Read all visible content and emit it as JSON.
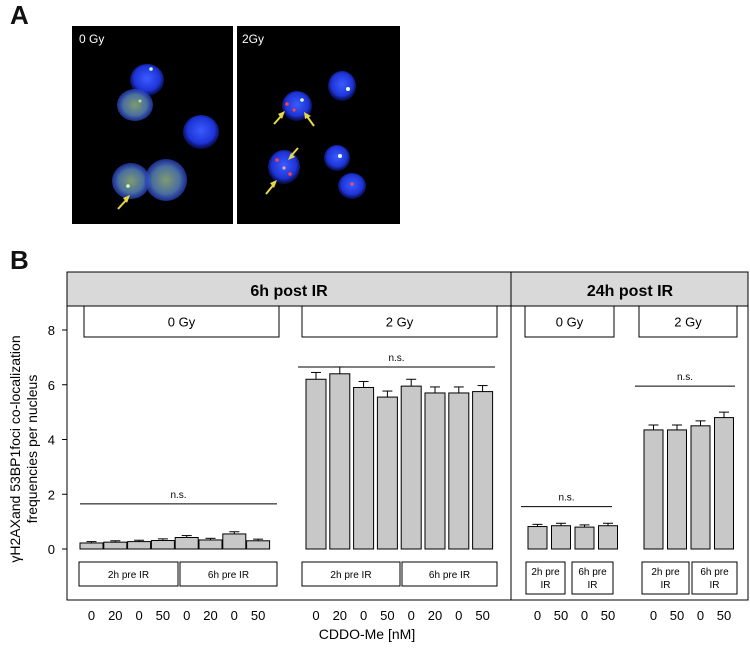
{
  "panels": {
    "a": "A",
    "b": "B"
  },
  "micrographs": [
    {
      "label": "0 Gy"
    },
    {
      "label": "2Gy"
    }
  ],
  "chart_data": {
    "type": "bar",
    "ylabel_line1": "γH2AXand 53BP1foci co-localization",
    "ylabel_line2": "frequencies per nucleus",
    "xlabel": "CDDO-Me [nM]",
    "ylim": [
      0,
      9
    ],
    "yticks": [
      0,
      2,
      4,
      6,
      8
    ],
    "sections": [
      {
        "title": "6h post IR",
        "groups": [
          {
            "dose": "0 Gy",
            "x": [
              "0",
              "20",
              "0",
              "50",
              "0",
              "20",
              "0",
              "50"
            ],
            "values": [
              0.22,
              0.25,
              0.27,
              0.31,
              0.42,
              0.33,
              0.55,
              0.3
            ],
            "errors": [
              0.05,
              0.05,
              0.05,
              0.06,
              0.07,
              0.06,
              0.08,
              0.06
            ],
            "pretreat": [
              "2h pre IR",
              "6h pre IR"
            ],
            "ns": "n.s.",
            "ns_y": 1.65
          },
          {
            "dose": "2 Gy",
            "x": [
              "0",
              "20",
              "0",
              "50",
              "0",
              "20",
              "0",
              "50"
            ],
            "values": [
              6.2,
              6.4,
              5.9,
              5.55,
              5.95,
              5.7,
              5.7,
              5.75
            ],
            "errors": [
              0.25,
              0.25,
              0.22,
              0.22,
              0.25,
              0.22,
              0.22,
              0.22
            ],
            "pretreat": [
              "2h pre IR",
              "6h pre IR"
            ],
            "ns": "n.s.",
            "ns_y": 6.65
          }
        ]
      },
      {
        "title": "24h post IR",
        "groups": [
          {
            "dose": "0 Gy",
            "x": [
              "0",
              "50",
              "0",
              "50"
            ],
            "values": [
              0.82,
              0.85,
              0.8,
              0.85
            ],
            "errors": [
              0.08,
              0.09,
              0.08,
              0.09
            ],
            "pretreat": [
              "2h pre IR",
              "6h pre IR"
            ],
            "ns": "n.s.",
            "ns_y": 1.55
          },
          {
            "dose": "2 Gy",
            "x": [
              "0",
              "50",
              "0",
              "50"
            ],
            "values": [
              4.35,
              4.35,
              4.5,
              4.8
            ],
            "errors": [
              0.18,
              0.18,
              0.18,
              0.2
            ],
            "pretreat": [
              "2h pre IR",
              "6h pre IR"
            ],
            "ns": "n.s.",
            "ns_y": 5.95
          }
        ]
      }
    ],
    "colors": {
      "bar": "#c8c8c8",
      "header": "#d9d9d9",
      "axis": "#000000"
    }
  }
}
